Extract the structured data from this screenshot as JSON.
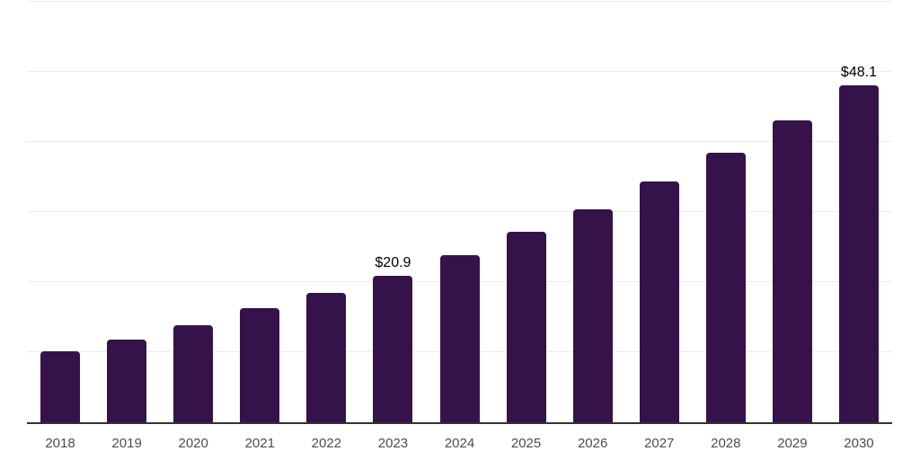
{
  "chart_data": {
    "type": "bar",
    "title": "",
    "xlabel": "",
    "ylabel": "",
    "categories": [
      "2018",
      "2019",
      "2020",
      "2021",
      "2022",
      "2023",
      "2024",
      "2025",
      "2026",
      "2027",
      "2028",
      "2029",
      "2030"
    ],
    "values": [
      10.1,
      11.8,
      13.9,
      16.3,
      18.5,
      20.9,
      23.9,
      27.2,
      30.4,
      34.4,
      38.5,
      43.1,
      48.1
    ],
    "data_labels": [
      {
        "category": "2023",
        "text": "$20.9"
      },
      {
        "category": "2030",
        "text": "$48.1"
      }
    ],
    "ylim": [
      0,
      60
    ],
    "gridline_step": 10,
    "grid": "horizontal-only",
    "legend": "none",
    "y_tick_labels_visible": false,
    "colors": {
      "bar": "#36124a",
      "gridline": "#ececec",
      "axis_line": "#333333",
      "tick_label": "#4d4d4d",
      "value_label": "#000000",
      "background": "#ffffff"
    }
  }
}
